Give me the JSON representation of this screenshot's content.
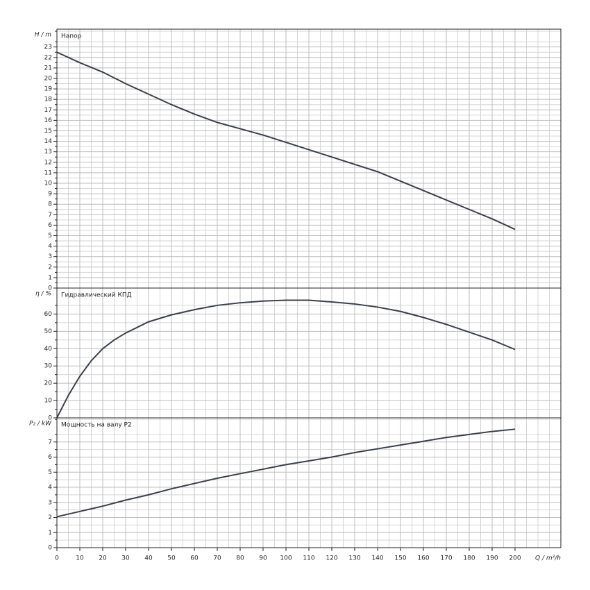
{
  "chart_data": [
    {
      "type": "line",
      "title": "Напор",
      "ylabel": "H / m",
      "x": [
        0,
        10,
        20,
        30,
        40,
        50,
        60,
        70,
        80,
        90,
        100,
        110,
        120,
        130,
        140,
        150,
        160,
        170,
        180,
        190,
        200
      ],
      "series": [
        {
          "name": "Напор",
          "color": "#3a3f4a",
          "values": [
            22.5,
            21.5,
            20.6,
            19.5,
            18.5,
            17.5,
            16.6,
            15.8,
            15.2,
            14.6,
            13.9,
            13.2,
            12.5,
            11.8,
            11.1,
            10.2,
            9.3,
            8.4,
            7.5,
            6.6,
            5.6
          ]
        }
      ],
      "xlim": [
        0,
        220
      ],
      "ylim": [
        0,
        24.7
      ],
      "yticks": [
        0,
        1,
        2,
        3,
        4,
        5,
        6,
        7,
        8,
        9,
        10,
        11,
        12,
        13,
        14,
        15,
        16,
        17,
        18,
        19,
        20,
        21,
        22,
        23
      ],
      "grid": true
    },
    {
      "type": "line",
      "title": "Гидравлический КПД",
      "ylabel": "η / %",
      "x": [
        0,
        5,
        10,
        15,
        20,
        25,
        30,
        40,
        50,
        60,
        70,
        80,
        90,
        100,
        110,
        120,
        130,
        140,
        150,
        160,
        170,
        180,
        190,
        200
      ],
      "series": [
        {
          "name": "Гидравлический КПД",
          "color": "#3a3f4a",
          "values": [
            0,
            13,
            24,
            33,
            40,
            45,
            49,
            55.5,
            59.5,
            62.5,
            65,
            66.5,
            67.5,
            68,
            68,
            67,
            65.8,
            64,
            61.5,
            58,
            54,
            49.5,
            45,
            39.5
          ]
        }
      ],
      "xlim": [
        0,
        220
      ],
      "ylim": [
        0,
        75
      ],
      "yticks": [
        0,
        10,
        20,
        30,
        40,
        50,
        60
      ],
      "grid": true
    },
    {
      "type": "line",
      "title": "Мощность на валу P2",
      "ylabel": "P₂ / kW",
      "xlabel": "Q / m³/h",
      "x": [
        0,
        10,
        20,
        30,
        40,
        50,
        60,
        70,
        80,
        90,
        100,
        110,
        120,
        130,
        140,
        150,
        160,
        170,
        180,
        190,
        200
      ],
      "series": [
        {
          "name": "Мощность на валу P2",
          "color": "#3a3f4a",
          "values": [
            2.05,
            2.4,
            2.75,
            3.15,
            3.5,
            3.9,
            4.25,
            4.6,
            4.9,
            5.2,
            5.5,
            5.75,
            6.0,
            6.3,
            6.55,
            6.8,
            7.05,
            7.3,
            7.5,
            7.7,
            7.85
          ]
        }
      ],
      "xlim": [
        0,
        220
      ],
      "ylim": [
        0,
        8.6
      ],
      "xticks": [
        0,
        10,
        20,
        30,
        40,
        50,
        60,
        70,
        80,
        90,
        100,
        110,
        120,
        130,
        140,
        150,
        160,
        170,
        180,
        190,
        200
      ],
      "yticks": [
        0,
        1,
        2,
        3,
        4,
        5,
        6,
        7
      ],
      "grid": true
    }
  ]
}
